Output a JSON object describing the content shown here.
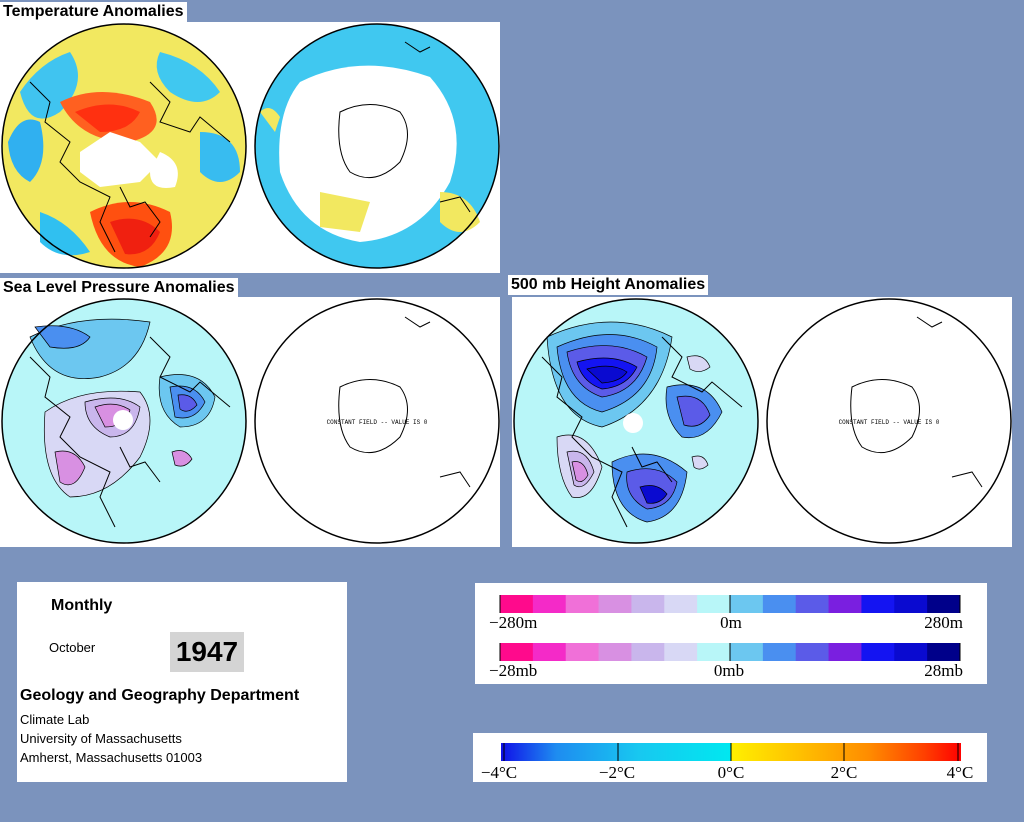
{
  "titles": {
    "temperature": "Temperature Anomalies",
    "slp": "Sea Level Pressure Anomalies",
    "height": "500 mb Height Anomalies"
  },
  "map_notes": {
    "constant_field": "CONSTANT FIELD -- VALUE IS 0"
  },
  "info": {
    "period": "Monthly",
    "month": "October",
    "year": "1947",
    "department": "Geology and Geography Department",
    "lab": "Climate Lab",
    "university": "University of Massachusetts",
    "address": "Amherst, Massachusetts 01003"
  },
  "legends": {
    "height": {
      "min": "−280m",
      "mid": "0m",
      "max": "280m"
    },
    "pressure": {
      "min": "−28mb",
      "mid": "0mb",
      "max": "28mb"
    },
    "temperature": {
      "t1": "−4°C",
      "t2": "−2°C",
      "t3": "0°C",
      "t4": "2°C",
      "t5": "4°C"
    }
  },
  "colors": {
    "background": "#7b93bd",
    "anom_pos_height": [
      "#b8f6f8",
      "#6cc7f0",
      "#4a8ff0",
      "#5b5be8",
      "#7a1fe0",
      "#1414f2",
      "#0a0ad0",
      "#00008a"
    ],
    "anom_neg_height": [
      "#d8d8f5",
      "#c9b6ec",
      "#d890e2",
      "#f070d8",
      "#f42ac8",
      "#ff0a8c"
    ],
    "temp_scale": [
      "#1010e8",
      "#1e8cf0",
      "#18c8f0",
      "#00e8f0",
      "#fff000",
      "#ffc000",
      "#ff8c00",
      "#ff4000",
      "#ff0000"
    ]
  }
}
